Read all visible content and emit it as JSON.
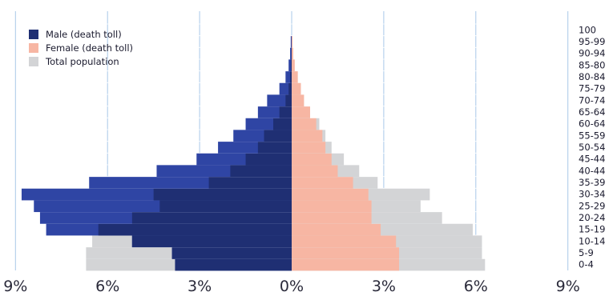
{
  "chart_data": {
    "type": "bar",
    "orientation": "horizontal",
    "title": "",
    "xlabel": "",
    "ylabel": "",
    "xlim": [
      -9,
      9
    ],
    "x_ticks": [
      "9%",
      "6%",
      "3%",
      "0%",
      "3%",
      "6%",
      "9%"
    ],
    "categories": [
      "0-4",
      "5-9",
      "10-14",
      "15-19",
      "20-24",
      "25-29",
      "30-34",
      "35-39",
      "40-44",
      "45-44",
      "50-54",
      "55-59",
      "60-64",
      "65-64",
      "70-74",
      "75-79",
      "80-84",
      "85-80",
      "90-94",
      "95-99",
      "100"
    ],
    "grid": true,
    "legend_position": "top-left",
    "colors": {
      "male_light": "#2f45a4",
      "male_dark": "#1f2f73",
      "female": "#f7b6a3",
      "total": "#d3d4d6",
      "grid": "#a8c8e8"
    },
    "series": [
      {
        "name": "Male (death toll)",
        "values": [
          3.8,
          3.9,
          5.2,
          8.0,
          8.2,
          8.4,
          8.8,
          6.6,
          4.4,
          3.1,
          2.4,
          1.9,
          1.5,
          1.1,
          0.8,
          0.4,
          0.2,
          0.1,
          0.05,
          0.03,
          0.0
        ]
      },
      {
        "name": "Female (death toll)",
        "values": [
          3.5,
          3.5,
          3.4,
          2.9,
          2.6,
          2.6,
          2.5,
          2.0,
          1.5,
          1.3,
          1.1,
          1.0,
          0.8,
          0.6,
          0.4,
          0.3,
          0.2,
          0.1,
          0.05,
          0.03,
          0.0
        ]
      },
      {
        "name": "Total population",
        "male_values": [
          6.7,
          6.7,
          6.5,
          6.3,
          5.2,
          4.3,
          4.5,
          2.7,
          2.0,
          1.5,
          1.1,
          0.9,
          0.6,
          0.4,
          0.2,
          0.1,
          0.05,
          0.02,
          0.01,
          0.0,
          0.0
        ],
        "female_values": [
          6.3,
          6.2,
          6.2,
          5.9,
          4.9,
          4.2,
          4.5,
          2.8,
          2.2,
          1.7,
          1.3,
          1.1,
          0.9,
          0.6,
          0.4,
          0.25,
          0.12,
          0.06,
          0.03,
          0.01,
          0.0
        ]
      }
    ],
    "male_dark_values": [
      3.8,
      3.9,
      5.2,
      6.3,
      5.2,
      4.3,
      4.5,
      2.7,
      2.0,
      1.5,
      1.1,
      0.9,
      0.6,
      0.4,
      0.2,
      0.1,
      0.05,
      0.02,
      0.01,
      0.0,
      0.0
    ]
  }
}
